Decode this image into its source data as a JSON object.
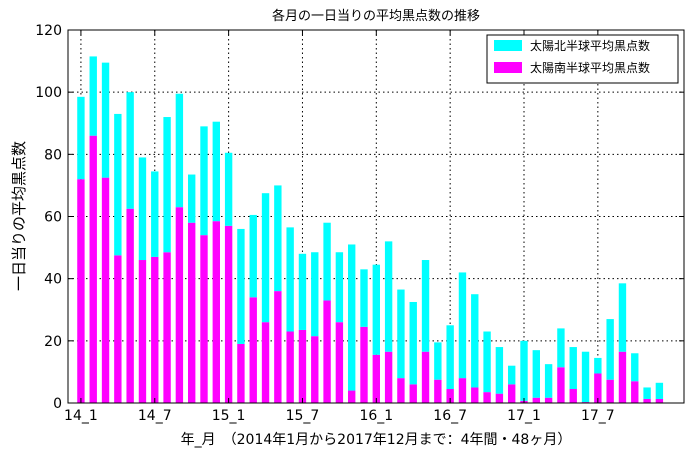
{
  "chart_data": {
    "type": "bar",
    "stacked": true,
    "title": "各月の一日当りの平均黒点数の推移",
    "xlabel": "年_月　（2014年1月から2017年12月まで：4年間・48ヶ月）",
    "ylabel": "一日当りの平均黒点数",
    "ylim": [
      0,
      120
    ],
    "yticks": [
      0,
      20,
      40,
      60,
      80,
      100,
      120
    ],
    "xtick_labels": [
      "14_1",
      "14_7",
      "15_1",
      "15_7",
      "16_1",
      "16_7",
      "17_1",
      "17_7"
    ],
    "xtick_every": 6,
    "grid": true,
    "legend_position": "top-right",
    "categories": [
      "14_1",
      "14_2",
      "14_3",
      "14_4",
      "14_5",
      "14_6",
      "14_7",
      "14_8",
      "14_9",
      "14_10",
      "14_11",
      "14_12",
      "15_1",
      "15_2",
      "15_3",
      "15_4",
      "15_5",
      "15_6",
      "15_7",
      "15_8",
      "15_9",
      "15_10",
      "15_11",
      "15_12",
      "16_1",
      "16_2",
      "16_3",
      "16_4",
      "16_5",
      "16_6",
      "16_7",
      "16_8",
      "16_9",
      "16_10",
      "16_11",
      "16_12",
      "17_1",
      "17_2",
      "17_3",
      "17_4",
      "17_5",
      "17_6",
      "17_7",
      "17_8",
      "17_9",
      "17_10",
      "17_11",
      "17_12"
    ],
    "series": [
      {
        "name": "太陽南半球平均黒点数",
        "color": "#ff00ff",
        "values": [
          72,
          86,
          72.5,
          47.5,
          62.5,
          46,
          47,
          48.5,
          63,
          58,
          54,
          58.5,
          57,
          19,
          34,
          26,
          36,
          23,
          23.5,
          21.5,
          33,
          26,
          4,
          24.5,
          15.5,
          16.5,
          8,
          6,
          16.5,
          7.5,
          4.5,
          8,
          5,
          3.5,
          3,
          6,
          0.7,
          1.7,
          1.7,
          11.5,
          4.5,
          0.3,
          9.5,
          7.5,
          16.5,
          7,
          1.3,
          1.3
        ]
      },
      {
        "name": "太陽北半球平均黒点数",
        "color": "#00ffff",
        "values": [
          26.5,
          25.5,
          37,
          45.5,
          37.5,
          33,
          27.5,
          43.5,
          36.5,
          15.5,
          35,
          32,
          23.5,
          37,
          26.5,
          41.5,
          34,
          33.5,
          24.5,
          27,
          25,
          22.5,
          47,
          18.5,
          29,
          35.5,
          28.5,
          26.5,
          29.5,
          12,
          20.5,
          34,
          30,
          19.5,
          15,
          6,
          19.3,
          15.3,
          10.8,
          12.5,
          13.5,
          16.2,
          5,
          19.5,
          22,
          9,
          3.7,
          5.2
        ]
      }
    ],
    "legend_order": [
      "太陽北半球平均黒点数",
      "太陽南半球平均黒点数"
    ]
  }
}
